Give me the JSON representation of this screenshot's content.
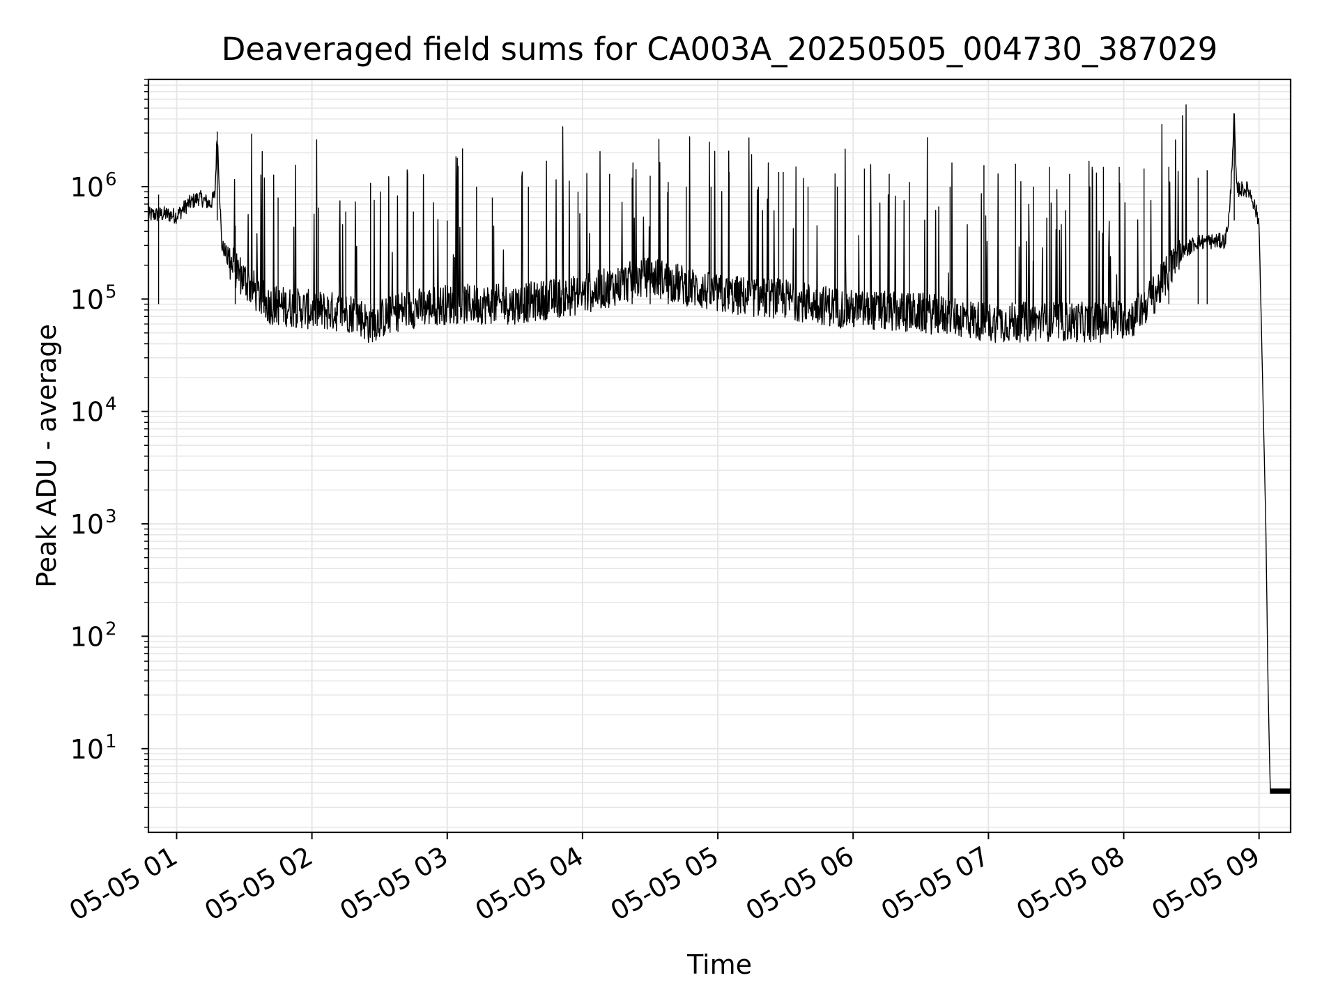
{
  "chart_data": {
    "type": "line",
    "title": "Deaveraged field sums for CA003A_20250505_004730_387029",
    "xlabel": "Time",
    "ylabel": "Peak ADU - average",
    "yscale": "log",
    "ylim": [
      1.8,
      9000000
    ],
    "xlim": [
      "2025-05-05 00:47:30",
      "2025-05-05 09:14:00"
    ],
    "grid": true,
    "x_tick_labels": [
      "05-05 01",
      "05-05 02",
      "05-05 03",
      "05-05 04",
      "05-05 05",
      "05-05 06",
      "05-05 07",
      "05-05 08",
      "05-05 09"
    ],
    "x_tick_values": [
      "2025-05-05 01:00",
      "2025-05-05 02:00",
      "2025-05-05 03:00",
      "2025-05-05 04:00",
      "2025-05-05 05:00",
      "2025-05-05 06:00",
      "2025-05-05 07:00",
      "2025-05-05 08:00",
      "2025-05-05 09:00"
    ],
    "y_tick_labels": [
      {
        "value": 10,
        "base": "10",
        "exp": "1"
      },
      {
        "value": 100,
        "base": "10",
        "exp": "2"
      },
      {
        "value": 1000,
        "base": "10",
        "exp": "3"
      },
      {
        "value": 10000,
        "base": "10",
        "exp": "4"
      },
      {
        "value": 100000,
        "base": "10",
        "exp": "5"
      },
      {
        "value": 1000000,
        "base": "10",
        "exp": "6"
      }
    ],
    "line_color": "#000000",
    "series": [
      {
        "x": [
          "2025-05-05 00:47:30",
          "2025-05-05 00:55",
          "2025-05-05 01:00",
          "2025-05-05 01:05",
          "2025-05-05 01:10",
          "2025-05-05 01:15",
          "2025-05-05 01:17",
          "2025-05-05 01:18",
          "2025-05-05 01:20",
          "2025-05-05 01:25",
          "2025-05-05 01:30",
          "2025-05-05 01:40",
          "2025-05-05 02:00",
          "2025-05-05 02:20",
          "2025-05-05 02:25",
          "2025-05-05 02:40",
          "2025-05-05 03:00",
          "2025-05-05 03:30",
          "2025-05-05 04:00",
          "2025-05-05 04:30",
          "2025-05-05 05:00",
          "2025-05-05 05:30",
          "2025-05-05 06:00",
          "2025-05-05 06:30",
          "2025-05-05 06:45",
          "2025-05-05 07:00",
          "2025-05-05 07:30",
          "2025-05-05 07:50",
          "2025-05-05 08:05",
          "2025-05-05 08:15",
          "2025-05-05 08:25",
          "2025-05-05 08:32",
          "2025-05-05 08:45",
          "2025-05-05 08:47",
          "2025-05-05 08:49",
          "2025-05-05 08:50",
          "2025-05-05 08:55",
          "2025-05-05 08:57",
          "2025-05-05 09:00",
          "2025-05-05 09:03",
          "2025-05-05 09:04",
          "2025-05-05 09:05",
          "2025-05-05 09:14"
        ],
        "y": [
          560000,
          570000,
          550000,
          700000,
          800000,
          700000,
          850000,
          3100000,
          300000,
          200000,
          150000,
          90000,
          80000,
          75000,
          60000,
          80000,
          90000,
          90000,
          110000,
          160000,
          110000,
          100000,
          80000,
          75000,
          70000,
          62000,
          63000,
          62000,
          70000,
          120000,
          250000,
          320000,
          330000,
          600000,
          4400000,
          950000,
          950000,
          800000,
          480000,
          1000,
          35,
          4,
          4
        ]
      }
    ],
    "spikes": {
      "x": [
        "2025-05-05 00:52",
        "2025-05-05 01:26",
        "2025-05-05 01:45",
        "2025-05-05 02:03",
        "2025-05-05 02:15",
        "2025-05-05 02:26",
        "2025-05-05 02:45",
        "2025-05-05 03:00",
        "2025-05-05 03:13",
        "2025-05-05 03:20",
        "2025-05-05 03:36",
        "2025-05-05 03:58",
        "2025-05-05 04:12",
        "2025-05-05 04:22",
        "2025-05-05 04:30",
        "2025-05-05 04:38",
        "2025-05-05 04:46",
        "2025-05-05 04:57",
        "2025-05-05 05:05",
        "2025-05-05 05:18",
        "2025-05-05 05:27",
        "2025-05-05 05:29",
        "2025-05-05 05:40",
        "2025-05-05 05:53",
        "2025-05-05 06:05",
        "2025-05-05 06:16",
        "2025-05-05 06:25",
        "2025-05-05 06:43",
        "2025-05-05 06:58",
        "2025-05-05 07:12",
        "2025-05-05 07:20",
        "2025-05-05 07:27",
        "2025-05-05 07:36",
        "2025-05-05 07:46",
        "2025-05-05 07:51",
        "2025-05-05 07:58",
        "2025-05-05 08:09",
        "2025-05-05 08:20",
        "2025-05-05 08:33",
        "2025-05-05 08:37"
      ],
      "y": [
        850000,
        450000,
        800000,
        650000,
        600000,
        1080000,
        600000,
        500000,
        1000000,
        800000,
        1000000,
        900000,
        1300000,
        1200000,
        1250000,
        1100000,
        1000000,
        1000000,
        1350000,
        1000000,
        1350000,
        1350000,
        1000000,
        1000000,
        1450000,
        1300000,
        1100000,
        1000000,
        1550000,
        1600000,
        1000000,
        1500000,
        1300000,
        1500000,
        1500000,
        1500000,
        1450000,
        1500000,
        1200000,
        1400000
      ]
    }
  }
}
